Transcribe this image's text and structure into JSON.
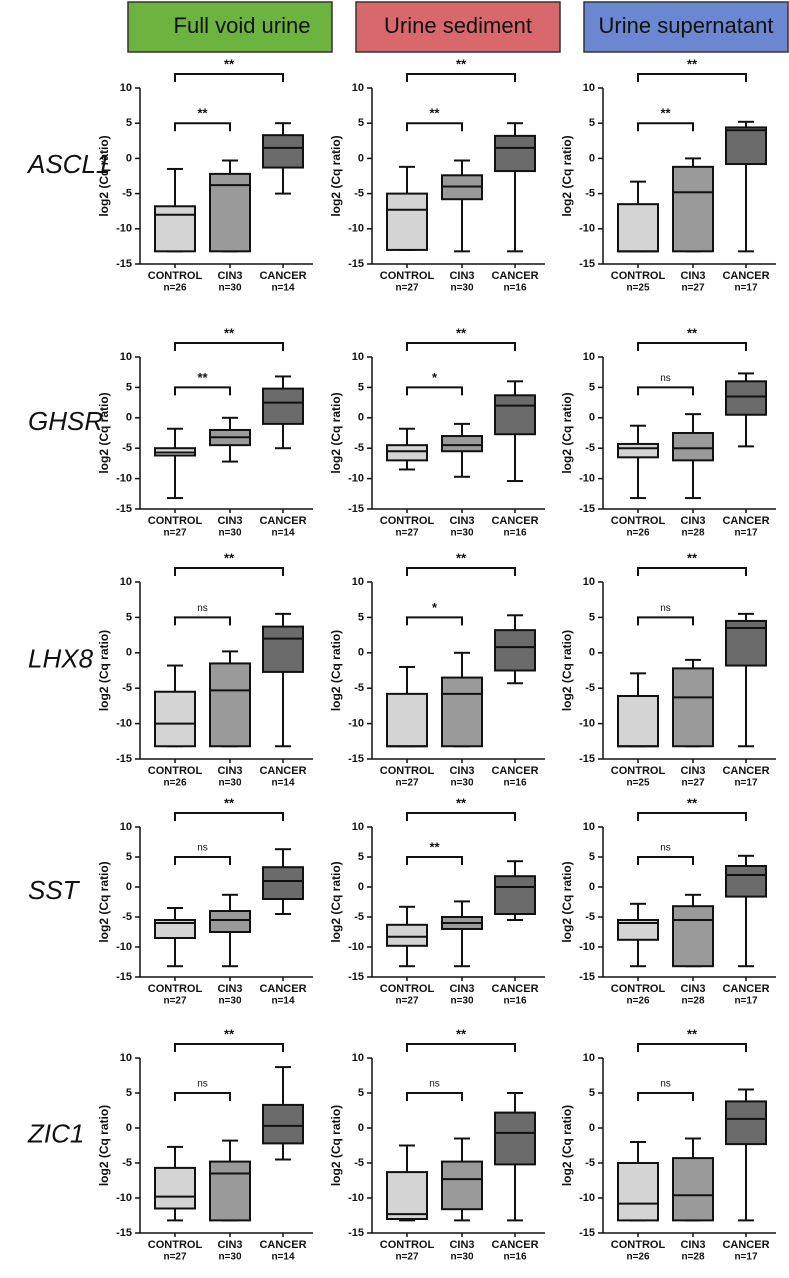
{
  "headers": [
    {
      "title": "Full void urine",
      "color": "#6db33f"
    },
    {
      "title": "Urine sediment",
      "color": "#d9686c"
    },
    {
      "title": "Urine supernatant",
      "color": "#6b87cf"
    }
  ],
  "genes": [
    "ASCL1",
    "GHSR",
    "LHX8",
    "SST",
    "ZIC1"
  ],
  "chart_data": [
    {
      "type": "box",
      "y_label": "log2 (Cq ratio)",
      "categories": [
        "CONTROL",
        "CIN3",
        "CANCER"
      ],
      "n_labels": [
        "n=26",
        "n=30",
        "n=14"
      ],
      "colors": [
        "#d4d4d4",
        "#9a9a9a",
        "#6b6b6b"
      ],
      "ylim": [
        -15,
        10
      ],
      "yticks": [
        -15,
        -10,
        -5,
        0,
        5,
        10
      ],
      "boxes": [
        {
          "min": -13.2,
          "q1": -13.2,
          "median": -8,
          "q3": -6.8,
          "max": -1.5
        },
        {
          "min": -13.2,
          "q1": -13.2,
          "median": -3.8,
          "q3": -2.2,
          "max": -0.3
        },
        {
          "min": -5,
          "q1": -1.3,
          "median": 1.5,
          "q3": 3.3,
          "max": 5
        }
      ],
      "significance": {
        "control_vs_cancer": "**",
        "control_vs_cin3": "**"
      }
    },
    {
      "type": "box",
      "y_label": "log2 (Cq ratio)",
      "categories": [
        "CONTROL",
        "CIN3",
        "CANCER"
      ],
      "n_labels": [
        "n=27",
        "n=30",
        "n=16"
      ],
      "colors": [
        "#d4d4d4",
        "#9a9a9a",
        "#6b6b6b"
      ],
      "ylim": [
        -15,
        10
      ],
      "yticks": [
        -15,
        -10,
        -5,
        0,
        5,
        10
      ],
      "boxes": [
        {
          "min": -13,
          "q1": -13,
          "median": -7.3,
          "q3": -5,
          "max": -1.2
        },
        {
          "min": -13.2,
          "q1": -5.8,
          "median": -4,
          "q3": -2.4,
          "max": -0.3
        },
        {
          "min": -13.2,
          "q1": -1.8,
          "median": 1.5,
          "q3": 3.2,
          "max": 5
        }
      ],
      "significance": {
        "control_vs_cancer": "**",
        "control_vs_cin3": "**"
      }
    },
    {
      "type": "box",
      "y_label": "log2 (Cq ratio)",
      "categories": [
        "CONTROL",
        "CIN3",
        "CANCER"
      ],
      "n_labels": [
        "n=25",
        "n=27",
        "n=17"
      ],
      "colors": [
        "#d4d4d4",
        "#9a9a9a",
        "#6b6b6b"
      ],
      "ylim": [
        -15,
        10
      ],
      "yticks": [
        -15,
        -10,
        -5,
        0,
        5,
        10
      ],
      "boxes": [
        {
          "min": -13.2,
          "q1": -13.2,
          "median": -13.2,
          "q3": -6.5,
          "max": -3.3
        },
        {
          "min": -13.2,
          "q1": -13.2,
          "median": -4.8,
          "q3": -1.2,
          "max": 0
        },
        {
          "min": -13.2,
          "q1": -0.8,
          "median": 4,
          "q3": 4.4,
          "max": 5.2
        }
      ],
      "significance": {
        "control_vs_cancer": "**",
        "control_vs_cin3": "**"
      }
    },
    {
      "type": "box",
      "y_label": "log2 (Cq ratio)",
      "categories": [
        "CONTROL",
        "CIN3",
        "CANCER"
      ],
      "n_labels": [
        "n=27",
        "n=30",
        "n=14"
      ],
      "colors": [
        "#d4d4d4",
        "#9a9a9a",
        "#6b6b6b"
      ],
      "ylim": [
        -15,
        10
      ],
      "yticks": [
        -15,
        -10,
        -5,
        0,
        5,
        10
      ],
      "boxes": [
        {
          "min": -13.2,
          "q1": -6.2,
          "median": -5.7,
          "q3": -5,
          "max": -1.8
        },
        {
          "min": -7.2,
          "q1": -4.5,
          "median": -3.2,
          "q3": -2,
          "max": 0
        },
        {
          "min": -5,
          "q1": -1,
          "median": 2.5,
          "q3": 4.8,
          "max": 6.8
        }
      ],
      "significance": {
        "control_vs_cancer": "**",
        "control_vs_cin3": "**"
      }
    },
    {
      "type": "box",
      "y_label": "log2 (Cq ratio)",
      "categories": [
        "CONTROL",
        "CIN3",
        "CANCER"
      ],
      "n_labels": [
        "n=27",
        "n=30",
        "n=16"
      ],
      "colors": [
        "#d4d4d4",
        "#9a9a9a",
        "#6b6b6b"
      ],
      "ylim": [
        -15,
        10
      ],
      "yticks": [
        -15,
        -10,
        -5,
        0,
        5,
        10
      ],
      "boxes": [
        {
          "min": -8.5,
          "q1": -7,
          "median": -5.5,
          "q3": -4.5,
          "max": -1.8
        },
        {
          "min": -9.7,
          "q1": -5.5,
          "median": -4.5,
          "q3": -3,
          "max": -1
        },
        {
          "min": -10.4,
          "q1": -2.7,
          "median": 2,
          "q3": 3.7,
          "max": 6
        }
      ],
      "significance": {
        "control_vs_cancer": "**",
        "control_vs_cin3": "*"
      }
    },
    {
      "type": "box",
      "y_label": "log2 (Cq ratio)",
      "categories": [
        "CONTROL",
        "CIN3",
        "CANCER"
      ],
      "n_labels": [
        "n=26",
        "n=28",
        "n=17"
      ],
      "colors": [
        "#d4d4d4",
        "#9a9a9a",
        "#6b6b6b"
      ],
      "ylim": [
        -15,
        10
      ],
      "yticks": [
        -15,
        -10,
        -5,
        0,
        5,
        10
      ],
      "boxes": [
        {
          "min": -13.2,
          "q1": -6.5,
          "median": -5,
          "q3": -4.3,
          "max": -1.3
        },
        {
          "min": -13.2,
          "q1": -7,
          "median": -5,
          "q3": -2.5,
          "max": 0.6
        },
        {
          "min": -4.7,
          "q1": 0.5,
          "median": 3.5,
          "q3": 6,
          "max": 7.3
        }
      ],
      "significance": {
        "control_vs_cancer": "**",
        "control_vs_cin3": "ns"
      }
    },
    {
      "type": "box",
      "y_label": "log2 (Cq ratio)",
      "categories": [
        "CONTROL",
        "CIN3",
        "CANCER"
      ],
      "n_labels": [
        "n=26",
        "n=30",
        "n=14"
      ],
      "colors": [
        "#d4d4d4",
        "#9a9a9a",
        "#6b6b6b"
      ],
      "ylim": [
        -15,
        10
      ],
      "yticks": [
        -15,
        -10,
        -5,
        0,
        5,
        10
      ],
      "boxes": [
        {
          "min": -13.2,
          "q1": -13.2,
          "median": -10,
          "q3": -5.5,
          "max": -1.8
        },
        {
          "min": -13.2,
          "q1": -13.2,
          "median": -5.3,
          "q3": -1.5,
          "max": 0.2
        },
        {
          "min": -13.2,
          "q1": -2.7,
          "median": 2,
          "q3": 3.7,
          "max": 5.5
        }
      ],
      "significance": {
        "control_vs_cancer": "**",
        "control_vs_cin3": "ns"
      }
    },
    {
      "type": "box",
      "y_label": "log2 (Cq ratio)",
      "categories": [
        "CONTROL",
        "CIN3",
        "CANCER"
      ],
      "n_labels": [
        "n=27",
        "n=30",
        "n=16"
      ],
      "colors": [
        "#d4d4d4",
        "#9a9a9a",
        "#6b6b6b"
      ],
      "ylim": [
        -15,
        10
      ],
      "yticks": [
        -15,
        -10,
        -5,
        0,
        5,
        10
      ],
      "boxes": [
        {
          "min": -13.2,
          "q1": -13.2,
          "median": -13.2,
          "q3": -5.8,
          "max": -2
        },
        {
          "min": -13.2,
          "q1": -13.2,
          "median": -5.8,
          "q3": -3.5,
          "max": 0
        },
        {
          "min": -4.3,
          "q1": -2.5,
          "median": 0.8,
          "q3": 3.2,
          "max": 5.3
        }
      ],
      "significance": {
        "control_vs_cancer": "**",
        "control_vs_cin3": "*"
      }
    },
    {
      "type": "box",
      "y_label": "log2 (Cq ratio)",
      "categories": [
        "CONTROL",
        "CIN3",
        "CANCER"
      ],
      "n_labels": [
        "n=25",
        "n=27",
        "n=17"
      ],
      "colors": [
        "#d4d4d4",
        "#9a9a9a",
        "#6b6b6b"
      ],
      "ylim": [
        -15,
        10
      ],
      "yticks": [
        -15,
        -10,
        -5,
        0,
        5,
        10
      ],
      "boxes": [
        {
          "min": -13.2,
          "q1": -13.2,
          "median": -13.2,
          "q3": -6.1,
          "max": -2.9
        },
        {
          "min": -13.2,
          "q1": -13.2,
          "median": -6.3,
          "q3": -2.2,
          "max": -1
        },
        {
          "min": -13.2,
          "q1": -1.8,
          "median": 3.5,
          "q3": 4.5,
          "max": 5.5
        }
      ],
      "significance": {
        "control_vs_cancer": "**",
        "control_vs_cin3": "ns"
      }
    },
    {
      "type": "box",
      "y_label": "log2 (Cq ratio)",
      "categories": [
        "CONTROL",
        "CIN3",
        "CANCER"
      ],
      "n_labels": [
        "n=27",
        "n=30",
        "n=14"
      ],
      "colors": [
        "#d4d4d4",
        "#9a9a9a",
        "#6b6b6b"
      ],
      "ylim": [
        -15,
        10
      ],
      "yticks": [
        -15,
        -10,
        -5,
        0,
        5,
        10
      ],
      "boxes": [
        {
          "min": -13.2,
          "q1": -8.5,
          "median": -6,
          "q3": -5.5,
          "max": -3.5
        },
        {
          "min": -13.2,
          "q1": -7.5,
          "median": -5.5,
          "q3": -4,
          "max": -1.3
        },
        {
          "min": -4.5,
          "q1": -2,
          "median": 1,
          "q3": 3.3,
          "max": 6.3
        }
      ],
      "significance": {
        "control_vs_cancer": "**",
        "control_vs_cin3": "ns"
      }
    },
    {
      "type": "box",
      "y_label": "log2 (Cq ratio)",
      "categories": [
        "CONTROL",
        "CIN3",
        "CANCER"
      ],
      "n_labels": [
        "n=27",
        "n=30",
        "n=16"
      ],
      "colors": [
        "#d4d4d4",
        "#9a9a9a",
        "#6b6b6b"
      ],
      "ylim": [
        -15,
        10
      ],
      "yticks": [
        -15,
        -10,
        -5,
        0,
        5,
        10
      ],
      "boxes": [
        {
          "min": -13.2,
          "q1": -9.8,
          "median": -8.3,
          "q3": -6.3,
          "max": -3.3
        },
        {
          "min": -13.2,
          "q1": -7,
          "median": -6,
          "q3": -5,
          "max": -2.4
        },
        {
          "min": -5.5,
          "q1": -4.5,
          "median": 0,
          "q3": 1.8,
          "max": 4.3
        }
      ],
      "significance": {
        "control_vs_cancer": "**",
        "control_vs_cin3": "**"
      }
    },
    {
      "type": "box",
      "y_label": "log2 (Cq ratio)",
      "categories": [
        "CONTROL",
        "CIN3",
        "CANCER"
      ],
      "n_labels": [
        "n=26",
        "n=28",
        "n=17"
      ],
      "colors": [
        "#d4d4d4",
        "#9a9a9a",
        "#6b6b6b"
      ],
      "ylim": [
        -15,
        10
      ],
      "yticks": [
        -15,
        -10,
        -5,
        0,
        5,
        10
      ],
      "boxes": [
        {
          "min": -13.2,
          "q1": -8.8,
          "median": -6,
          "q3": -5.5,
          "max": -2.8
        },
        {
          "min": -13.2,
          "q1": -13.2,
          "median": -5.5,
          "q3": -3.2,
          "max": -1.3
        },
        {
          "min": -13.2,
          "q1": -1.6,
          "median": 2,
          "q3": 3.5,
          "max": 5.2
        }
      ],
      "significance": {
        "control_vs_cancer": "**",
        "control_vs_cin3": "ns"
      }
    },
    {
      "type": "box",
      "y_label": "log2 (Cq ratio)",
      "categories": [
        "CONTROL",
        "CIN3",
        "CANCER"
      ],
      "n_labels": [
        "n=27",
        "n=30",
        "n=14"
      ],
      "colors": [
        "#d4d4d4",
        "#9a9a9a",
        "#6b6b6b"
      ],
      "ylim": [
        -15,
        10
      ],
      "yticks": [
        -15,
        -10,
        -5,
        0,
        5,
        10
      ],
      "boxes": [
        {
          "min": -13.2,
          "q1": -11.5,
          "median": -9.8,
          "q3": -5.7,
          "max": -2.7
        },
        {
          "min": -13.2,
          "q1": -13.2,
          "median": -6.5,
          "q3": -4.8,
          "max": -1.8
        },
        {
          "min": -4.5,
          "q1": -2.2,
          "median": 0.3,
          "q3": 3.3,
          "max": 8.7
        }
      ],
      "significance": {
        "control_vs_cancer": "**",
        "control_vs_cin3": "ns"
      }
    },
    {
      "type": "box",
      "y_label": "log2 (Cq ratio)",
      "categories": [
        "CONTROL",
        "CIN3",
        "CANCER"
      ],
      "n_labels": [
        "n=27",
        "n=30",
        "n=16"
      ],
      "colors": [
        "#d4d4d4",
        "#9a9a9a",
        "#6b6b6b"
      ],
      "ylim": [
        -15,
        10
      ],
      "yticks": [
        -15,
        -10,
        -5,
        0,
        5,
        10
      ],
      "boxes": [
        {
          "min": -13.2,
          "q1": -13,
          "median": -12.3,
          "q3": -6.3,
          "max": -2.5
        },
        {
          "min": -13.2,
          "q1": -11.6,
          "median": -7.3,
          "q3": -4.8,
          "max": -1.5
        },
        {
          "min": -13.2,
          "q1": -5.2,
          "median": -0.7,
          "q3": 2.2,
          "max": 5
        }
      ],
      "significance": {
        "control_vs_cancer": "**",
        "control_vs_cin3": "ns"
      }
    },
    {
      "type": "box",
      "y_label": "log2 (Cq ratio)",
      "categories": [
        "CONTROL",
        "CIN3",
        "CANCER"
      ],
      "n_labels": [
        "n=26",
        "n=28",
        "n=17"
      ],
      "colors": [
        "#d4d4d4",
        "#9a9a9a",
        "#6b6b6b"
      ],
      "ylim": [
        -15,
        10
      ],
      "yticks": [
        -15,
        -10,
        -5,
        0,
        5,
        10
      ],
      "boxes": [
        {
          "min": -13.2,
          "q1": -13.2,
          "median": -10.8,
          "q3": -5,
          "max": -2
        },
        {
          "min": -13.2,
          "q1": -13.2,
          "median": -9.6,
          "q3": -4.3,
          "max": -1.5
        },
        {
          "min": -13.2,
          "q1": -2.3,
          "median": 1.3,
          "q3": 3.8,
          "max": 5.5
        }
      ],
      "significance": {
        "control_vs_cancer": "**",
        "control_vs_cin3": "ns"
      }
    }
  ]
}
